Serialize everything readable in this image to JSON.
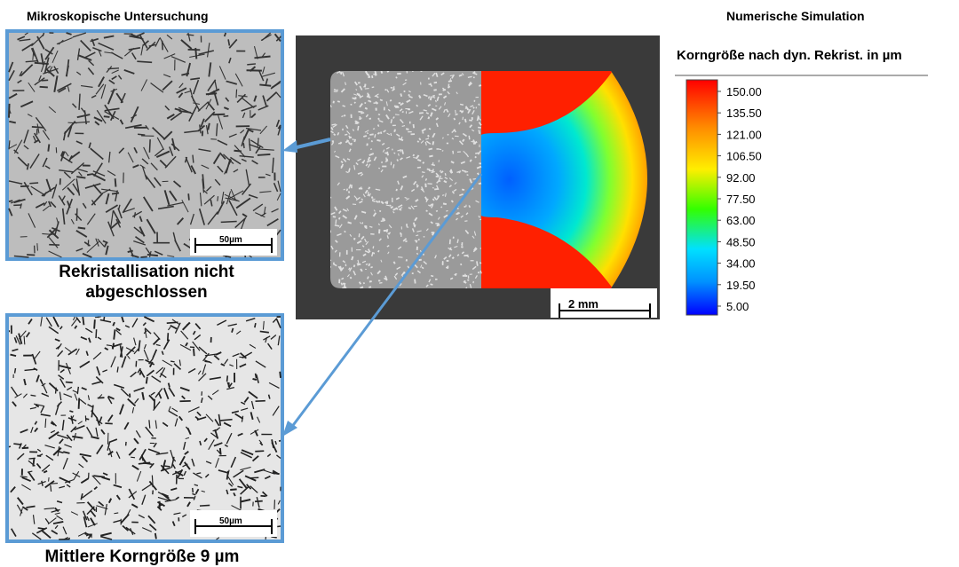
{
  "left_heading": "Mikroskopische Untersuchung",
  "micrographs": [
    {
      "scale_bar": "50µm",
      "caption": "Rekristallisation nicht abgeschlossen"
    },
    {
      "scale_bar": "50µm",
      "caption": "Mittlere Korngröße 9 µm"
    }
  ],
  "specimen": {
    "scale_bar": "2 mm"
  },
  "simulation": {
    "heading": "Numerische Simulation",
    "colorbar": {
      "title": "Korngröße nach dyn. Rekrist. in µm",
      "ticks": [
        {
          "value": 150,
          "label": "150.00"
        },
        {
          "value": 135.5,
          "label": "135.50"
        },
        {
          "value": 121,
          "label": "121.00"
        },
        {
          "value": 106.5,
          "label": "106.50"
        },
        {
          "value": 92,
          "label": "92.00"
        },
        {
          "value": 77.5,
          "label": "77.50"
        },
        {
          "value": 63,
          "label": "63.00"
        },
        {
          "value": 48.5,
          "label": "48.50"
        },
        {
          "value": 34,
          "label": "34.00"
        },
        {
          "value": 19.5,
          "label": "19.50"
        },
        {
          "value": 5,
          "label": "5.00"
        }
      ]
    }
  }
}
